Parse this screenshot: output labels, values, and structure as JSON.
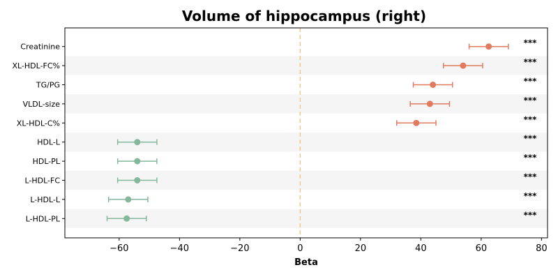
{
  "chart_data": {
    "type": "forest",
    "title": "Volume of hippocampus (right)",
    "xlabel": "Beta",
    "ylabel": "",
    "xlim": [
      -78,
      82
    ],
    "xticks": [
      -60,
      -40,
      -20,
      0,
      20,
      40,
      60,
      80
    ],
    "xtick_labels": [
      "−60",
      "−40",
      "−20",
      "0",
      "20",
      "40",
      "60",
      "80"
    ],
    "reference_line": 0,
    "grid": false,
    "colors": {
      "positive": "#e07b5f",
      "negative": "#85b79d",
      "reference": "#f3c98b",
      "band": "#f5f5f5"
    },
    "items": [
      {
        "label": "Creatinine",
        "beta": 62.5,
        "ci_low": 56.0,
        "ci_high": 69.0,
        "sig": "***"
      },
      {
        "label": "XL-HDL-FC%",
        "beta": 54.0,
        "ci_low": 47.5,
        "ci_high": 60.5,
        "sig": "***"
      },
      {
        "label": "TG/PG",
        "beta": 44.0,
        "ci_low": 37.5,
        "ci_high": 50.5,
        "sig": "***"
      },
      {
        "label": "VLDL-size",
        "beta": 43.0,
        "ci_low": 36.5,
        "ci_high": 49.5,
        "sig": "***"
      },
      {
        "label": "XL-HDL-C%",
        "beta": 38.5,
        "ci_low": 32.0,
        "ci_high": 45.0,
        "sig": "***"
      },
      {
        "label": "HDL-L",
        "beta": -54.0,
        "ci_low": -60.5,
        "ci_high": -47.5,
        "sig": "***"
      },
      {
        "label": "HDL-PL",
        "beta": -54.0,
        "ci_low": -60.5,
        "ci_high": -47.5,
        "sig": "***"
      },
      {
        "label": "L-HDL-FC",
        "beta": -54.0,
        "ci_low": -60.5,
        "ci_high": -47.5,
        "sig": "***"
      },
      {
        "label": "L-HDL-L",
        "beta": -57.0,
        "ci_low": -63.5,
        "ci_high": -50.5,
        "sig": "***"
      },
      {
        "label": "L-HDL-PL",
        "beta": -57.5,
        "ci_low": -64.0,
        "ci_high": -51.0,
        "sig": "***"
      }
    ]
  }
}
